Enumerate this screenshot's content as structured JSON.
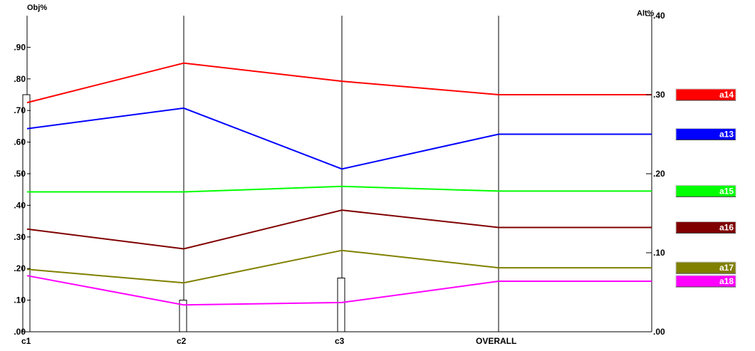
{
  "chart_data": {
    "type": "line",
    "categories": [
      "c1",
      "c2",
      "c3",
      "OVERALL"
    ],
    "left_axis": {
      "label": "Obj%",
      "ylim": [
        0,
        1.0
      ],
      "ticks": [
        ".00",
        ".10",
        ".20",
        ".30",
        ".40",
        ".50",
        ".60",
        ".70",
        ".80",
        ".90"
      ]
    },
    "right_axis": {
      "label": "Alt%",
      "ylim": [
        0,
        0.4
      ],
      "ticks": [
        ".00",
        ".10",
        ".20",
        ".30",
        ".40"
      ]
    },
    "criterion_weights": [
      0.75,
      0.1,
      0.17
    ],
    "series": [
      {
        "name": "a14",
        "color": "#ff0000",
        "values": [
          0.29,
          0.34,
          0.317,
          0.3
        ]
      },
      {
        "name": "a13",
        "color": "#0000ff",
        "values": [
          0.257,
          0.283,
          0.206,
          0.25
        ]
      },
      {
        "name": "a15",
        "color": "#00ff00",
        "values": [
          0.177,
          0.177,
          0.184,
          0.178
        ]
      },
      {
        "name": "a16",
        "color": "#800000",
        "values": [
          0.13,
          0.105,
          0.154,
          0.132
        ]
      },
      {
        "name": "a17",
        "color": "#808000",
        "values": [
          0.079,
          0.062,
          0.103,
          0.081
        ]
      },
      {
        "name": "a18",
        "color": "#ff00ff",
        "values": [
          0.071,
          0.034,
          0.037,
          0.064
        ]
      }
    ],
    "grid": false,
    "legend": "right"
  }
}
